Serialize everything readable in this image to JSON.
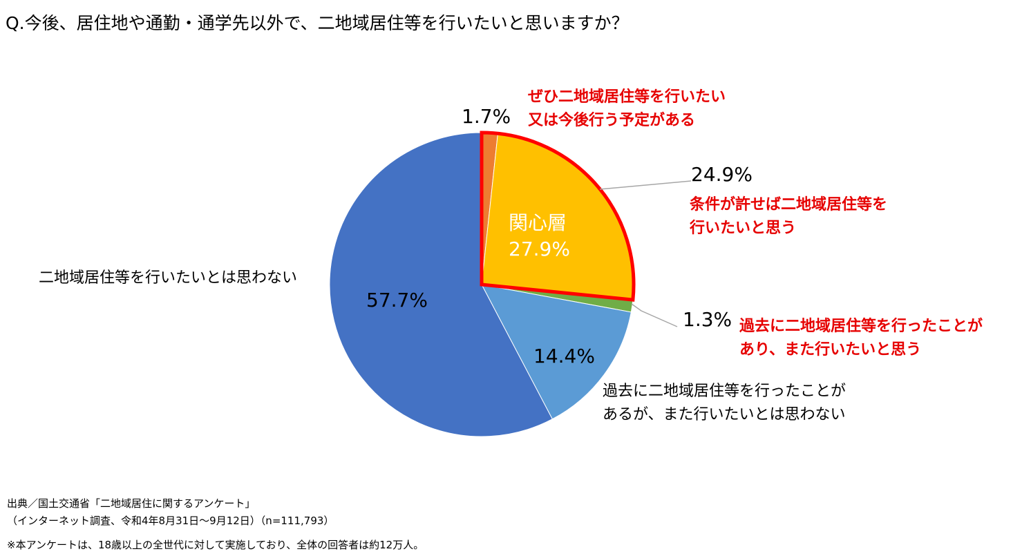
{
  "title": "Q.今後、居住地や通勤・通学先以外で、二地域居住等を行いたいと思いますか？",
  "chart_data": {
    "type": "pie",
    "slices": [
      {
        "label": "ぜひ二地域居住等を行いたい又は今後行う予定がある",
        "value": 1.7,
        "value_label": "1.7%",
        "color": "#ED7D31"
      },
      {
        "label": "条件が許せば二地域居住等を行いたいと思う",
        "value": 24.9,
        "value_label": "24.9%",
        "color": "#FFC000"
      },
      {
        "label": "過去に二地域居住等を行ったことがあり、また行いたいと思う",
        "value": 1.3,
        "value_label": "1.3%",
        "color": "#70AD47"
      },
      {
        "label": "過去に二地域居住等を行ったことがあるが、また行いたいとは思わない",
        "value": 14.4,
        "value_label": "14.4%",
        "color": "#5B9BD5"
      },
      {
        "label": "二地域居住等を行いたいとは思わない",
        "value": 57.7,
        "value_label": "57.7%",
        "color": "#4472C4"
      }
    ],
    "group": {
      "label": "関心層",
      "value_label": "27.9%",
      "outline_color": "#FF0000"
    }
  },
  "labels": {
    "s1_line1": "ぜひ二地域居住等を行いたい",
    "s1_line2": "又は今後行う予定がある",
    "s2_line1": "条件が許せば二地域居住等を",
    "s2_line2": "行いたいと思う",
    "s3_line1": "過去に二地域居住等を行ったことが",
    "s3_line2": "あり、また行いたいと思う",
    "s4_line1": "過去に二地域居住等を行ったことが",
    "s4_line2": "あるが、また行いたいとは思わない",
    "s5_line1": "二地域居住等を行いたいとは思わない"
  },
  "footer": {
    "line1": "出典／国土交通省「二地域居住に関するアンケート」",
    "line2": "（インターネット調査、令和4年8月31日～9月12日）（n=111,793）",
    "line3": "※本アンケートは、18歳以上の全世代に対して実施しており、全体の回答者は約12万人。"
  }
}
